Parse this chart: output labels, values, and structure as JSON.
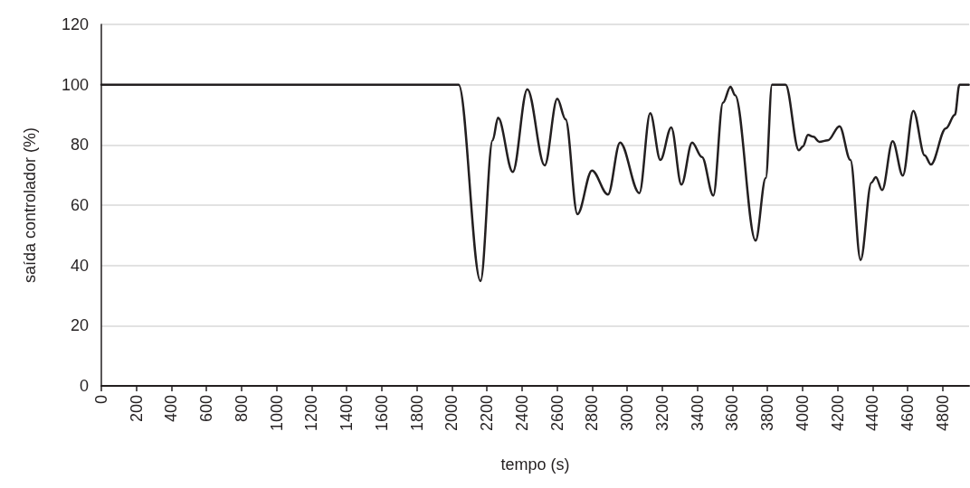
{
  "chart_data": {
    "type": "line",
    "xlabel": "tempo (s)",
    "ylabel": "saída controlador (%)",
    "xlim": [
      0,
      4950
    ],
    "xticks": [
      0,
      200,
      400,
      600,
      800,
      1000,
      1200,
      1400,
      1600,
      1800,
      2000,
      2200,
      2400,
      2600,
      2800,
      3000,
      3200,
      3400,
      3600,
      3800,
      4000,
      4200,
      4400,
      4600,
      4800
    ],
    "ylim": [
      0,
      120
    ],
    "yticks": [
      0,
      20,
      40,
      60,
      80,
      100,
      120
    ],
    "grid": "y",
    "marker": "none",
    "line_style": "solid",
    "series": [
      {
        "color": "#231f20",
        "x": [
          0,
          1000,
          2038,
          2163,
          2232,
          2263,
          2347,
          2430,
          2529,
          2601,
          2648,
          2716,
          2799,
          2890,
          2959,
          3069,
          3131,
          3189,
          3251,
          3309,
          3370,
          3426,
          3491,
          3546,
          3589,
          3615,
          3732,
          3790,
          3826,
          3903,
          3979,
          4002,
          4031,
          4062,
          4096,
          4144,
          4211,
          4273,
          4331,
          4393,
          4418,
          4454,
          4514,
          4572,
          4632,
          4697,
          4732,
          4818,
          4869,
          4895,
          4948
        ],
        "values": [
          100,
          100,
          100,
          34.8,
          81.5,
          89,
          71,
          98.5,
          73.2,
          95.3,
          88.5,
          57,
          71.5,
          63.5,
          80.8,
          64,
          90.5,
          75,
          85.8,
          66.8,
          80.8,
          76,
          63.2,
          94,
          99.3,
          96.5,
          48.2,
          69,
          100,
          100,
          78.2,
          79.5,
          83.3,
          82.7,
          81,
          81.5,
          86.2,
          75,
          41.8,
          67.5,
          69.3,
          65,
          81.2,
          69.8,
          91.3,
          76.5,
          73.5,
          85.5,
          90,
          100,
          100
        ]
      }
    ]
  }
}
